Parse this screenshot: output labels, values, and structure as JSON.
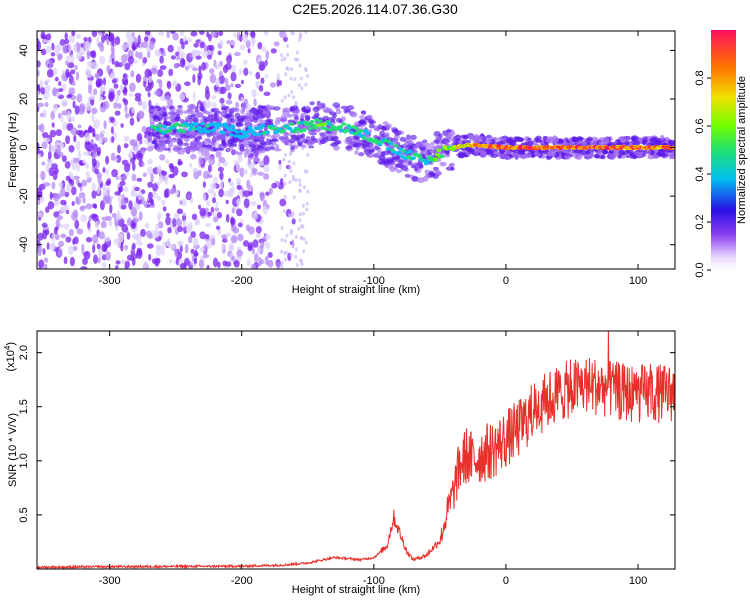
{
  "title": "C2E5.2026.114.07.36.G30",
  "chart_data": [
    {
      "type": "heatmap",
      "panel": "spectrogram",
      "xlabel": "Height of straight line (km)",
      "ylabel": "Frequency (Hz)",
      "xlim": [
        -355,
        128
      ],
      "ylim": [
        -50,
        48
      ],
      "xticks": [
        -300,
        -200,
        -100,
        0,
        100
      ],
      "xtick_labels": [
        "-300",
        "-200",
        "-100",
        "0",
        "100"
      ],
      "yticks": [
        -40,
        -20,
        0,
        20,
        40
      ],
      "ytick_labels": [
        "-40",
        "-20",
        "0",
        "20",
        "40"
      ],
      "colorbar": {
        "label": "Normalized spectral amplitude",
        "range": [
          0,
          1
        ],
        "ticks": [
          0.0,
          0.2,
          0.4,
          0.6,
          0.8
        ],
        "tick_labels": [
          "0.0",
          "0.2",
          "0.4",
          "0.6",
          "0.8"
        ]
      },
      "ridge": {
        "x": [
          -265,
          -240,
          -215,
          -200,
          -180,
          -160,
          -140,
          -120,
          -100,
          -80,
          -60,
          -50,
          -40,
          -30,
          -20,
          0,
          20,
          40,
          60,
          80,
          100,
          125
        ],
        "frequency": [
          8,
          8,
          8,
          6,
          8,
          8,
          10,
          8,
          4,
          -2,
          -6,
          -2,
          0,
          1,
          1,
          0,
          0,
          0,
          0,
          0,
          0,
          0
        ],
        "amplitude": [
          0.45,
          0.4,
          0.35,
          0.3,
          0.4,
          0.45,
          0.5,
          0.45,
          0.45,
          0.4,
          0.45,
          0.55,
          0.6,
          0.7,
          0.75,
          0.85,
          0.85,
          0.85,
          0.85,
          0.85,
          0.85,
          0.8
        ]
      }
    },
    {
      "type": "line",
      "panel": "snr",
      "xlabel": "Height of straight line (km)",
      "ylabel": "SNR (10 * V/V)",
      "scale_label": "(x10",
      "scale_exp": "4",
      "scale_close": ")",
      "xlim": [
        -355,
        128
      ],
      "ylim": [
        0,
        2.2
      ],
      "xticks": [
        -300,
        -200,
        -100,
        0,
        100
      ],
      "xtick_labels": [
        "-300",
        "-200",
        "-100",
        "0",
        "100"
      ],
      "yticks": [
        0.5,
        1.0,
        1.5,
        2.0
      ],
      "ytick_labels": [
        "0.5",
        "1.0",
        "1.5",
        "2.0"
      ],
      "color": "#e8302a",
      "envelope_x": [
        -355,
        -300,
        -200,
        -170,
        -150,
        -130,
        -110,
        -100,
        -90,
        -85,
        -80,
        -75,
        -70,
        -60,
        -50,
        -45,
        -40,
        -35,
        -30,
        -25,
        -20,
        -10,
        0,
        10,
        20,
        30,
        40,
        50,
        60,
        70,
        80,
        90,
        100,
        110,
        128
      ],
      "envelope_y": [
        0.01,
        0.015,
        0.02,
        0.03,
        0.05,
        0.1,
        0.08,
        0.1,
        0.2,
        0.45,
        0.3,
        0.15,
        0.08,
        0.12,
        0.25,
        0.5,
        0.7,
        0.95,
        1.05,
        1.0,
        1.05,
        1.1,
        1.2,
        1.3,
        1.45,
        1.55,
        1.62,
        1.67,
        1.7,
        1.69,
        1.66,
        1.63,
        1.62,
        1.62,
        1.63
      ]
    }
  ]
}
